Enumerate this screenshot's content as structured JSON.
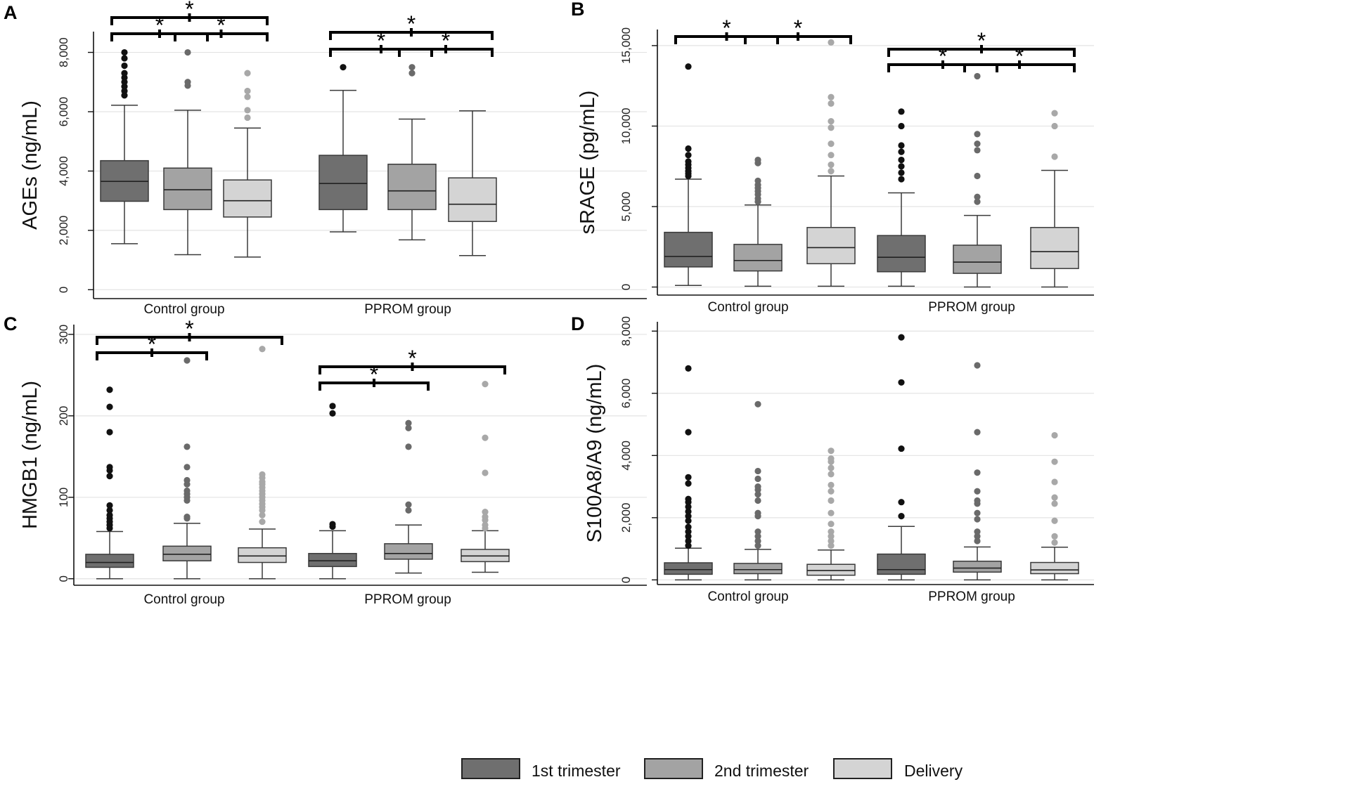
{
  "colors": {
    "dark": "#6f6f6f",
    "mid": "#a3a3a3",
    "light": "#d4d4d4",
    "outlier_dark": "#111111",
    "outlier_mid": "#6a6a6a",
    "outlier_light": "#a8a8a8"
  },
  "legend": [
    {
      "label": "1st trimester",
      "color": "#6f6f6f"
    },
    {
      "label": "2nd trimester",
      "color": "#a3a3a3"
    },
    {
      "label": "Delivery",
      "color": "#d4d4d4"
    }
  ],
  "chart_data": [
    {
      "type": "box",
      "panel": "A",
      "ylabel": "AGEs (ng/mL)",
      "ylim": [
        -300,
        8700
      ],
      "yticks": [
        0,
        2000,
        4000,
        6000,
        8000
      ],
      "ytick_labels": [
        "0",
        "2,000",
        "4,000",
        "6,000",
        "8,000"
      ],
      "groups": [
        "Control group",
        "PPROM group"
      ],
      "series": [
        "1st trimester",
        "2nd trimester",
        "Delivery"
      ],
      "boxes": [
        {
          "group": "Control group",
          "series": "1st trimester",
          "min": 1550,
          "q1": 2980,
          "median": 3650,
          "q3": 4350,
          "max": 6220,
          "outliers": [
            6550,
            6700,
            6850,
            7000,
            7150,
            7300,
            7550,
            7800,
            8000
          ]
        },
        {
          "group": "Control group",
          "series": "2nd trimester",
          "min": 1180,
          "q1": 2700,
          "median": 3370,
          "q3": 4100,
          "max": 6050,
          "outliers": [
            6880,
            7000,
            8000
          ]
        },
        {
          "group": "Control group",
          "series": "Delivery",
          "min": 1100,
          "q1": 2450,
          "median": 3000,
          "q3": 3700,
          "max": 5450,
          "outliers": [
            5800,
            6050,
            6500,
            6700,
            7300
          ]
        },
        {
          "group": "PPROM group",
          "series": "1st trimester",
          "min": 1950,
          "q1": 2700,
          "median": 3580,
          "q3": 4530,
          "max": 6720,
          "outliers": [
            7500
          ]
        },
        {
          "group": "PPROM group",
          "series": "2nd trimester",
          "min": 1680,
          "q1": 2700,
          "median": 3330,
          "q3": 4230,
          "max": 5750,
          "outliers": [
            7300,
            7500
          ]
        },
        {
          "group": "PPROM group",
          "series": "Delivery",
          "min": 1150,
          "q1": 2300,
          "median": 2880,
          "q3": 3770,
          "max": 6030,
          "outliers": []
        }
      ],
      "significance": [
        {
          "from": 0,
          "to": 1,
          "level": 0,
          "label": "*"
        },
        {
          "from": 1,
          "to": 2,
          "level": 0,
          "label": "*"
        },
        {
          "from": 0,
          "to": 2,
          "level": 1,
          "label": "*"
        },
        {
          "from": 3,
          "to": 4,
          "level": 0,
          "label": "*"
        },
        {
          "from": 4,
          "to": 5,
          "level": 0,
          "label": "*"
        },
        {
          "from": 3,
          "to": 5,
          "level": 1,
          "label": "*"
        }
      ]
    },
    {
      "type": "box",
      "panel": "B",
      "ylabel": "sRAGE (pg/mL)",
      "ylim": [
        -500,
        16000
      ],
      "yticks": [
        0,
        5000,
        10000,
        15000
      ],
      "ytick_labels": [
        "0",
        "5,000",
        "10,000",
        "15,000"
      ],
      "groups": [
        "Control group",
        "PPROM group"
      ],
      "series": [
        "1st trimester",
        "2nd trimester",
        "Delivery"
      ],
      "boxes": [
        {
          "group": "Control group",
          "series": "1st trimester",
          "min": 100,
          "q1": 1250,
          "median": 1900,
          "q3": 3400,
          "max": 6700,
          "outliers": [
            6900,
            7050,
            7200,
            7400,
            7600,
            7800,
            8200,
            8600,
            13700
          ]
        },
        {
          "group": "Control group",
          "series": "2nd trimester",
          "min": 50,
          "q1": 1000,
          "median": 1650,
          "q3": 2650,
          "max": 5100,
          "outliers": [
            5300,
            5500,
            5750,
            5950,
            6150,
            6350,
            6600,
            7700,
            7900
          ]
        },
        {
          "group": "Control group",
          "series": "Delivery",
          "min": 50,
          "q1": 1450,
          "median": 2450,
          "q3": 3700,
          "max": 6900,
          "outliers": [
            7200,
            7600,
            8200,
            8900,
            9900,
            10300,
            11400,
            11800,
            15200
          ]
        },
        {
          "group": "PPROM group",
          "series": "1st trimester",
          "min": 50,
          "q1": 950,
          "median": 1850,
          "q3": 3200,
          "max": 5850,
          "outliers": [
            6700,
            7100,
            7500,
            7900,
            8400,
            8800,
            10000,
            10900
          ]
        },
        {
          "group": "PPROM group",
          "series": "2nd trimester",
          "min": 0,
          "q1": 850,
          "median": 1550,
          "q3": 2600,
          "max": 4450,
          "outliers": [
            5300,
            5600,
            6900,
            8500,
            8900,
            9500,
            13100
          ]
        },
        {
          "group": "PPROM group",
          "series": "Delivery",
          "min": 0,
          "q1": 1150,
          "median": 2200,
          "q3": 3700,
          "max": 7250,
          "outliers": [
            8100,
            10000,
            10800
          ]
        }
      ],
      "significance": [
        {
          "from": 0,
          "to": 1,
          "level": 0,
          "label": "*"
        },
        {
          "from": 1,
          "to": 2,
          "level": 0,
          "label": "*"
        },
        {
          "from": 3,
          "to": 4,
          "level": 0,
          "label": "*"
        },
        {
          "from": 4,
          "to": 5,
          "level": 0,
          "label": "*"
        },
        {
          "from": 3,
          "to": 5,
          "level": 1,
          "label": "*"
        }
      ]
    },
    {
      "type": "box",
      "panel": "C",
      "ylabel": "HMGB1 (ng/mL)",
      "ylim": [
        -8,
        312
      ],
      "yticks": [
        0,
        100,
        200,
        300
      ],
      "ytick_labels": [
        "0",
        "100",
        "200",
        "300"
      ],
      "groups": [
        "Control group",
        "PPROM group"
      ],
      "series": [
        "1st trimester",
        "2nd trimester",
        "Delivery"
      ],
      "boxes": [
        {
          "group": "Control group",
          "series": "1st trimester",
          "min": 0,
          "q1": 14,
          "median": 20,
          "q3": 30,
          "max": 58,
          "outliers": [
            62,
            66,
            70,
            74,
            78,
            84,
            90,
            126,
            133,
            137,
            180,
            211,
            232
          ]
        },
        {
          "group": "Control group",
          "series": "2nd trimester",
          "min": 0,
          "q1": 22,
          "median": 30,
          "q3": 40,
          "max": 68,
          "outliers": [
            74,
            76,
            96,
            100,
            104,
            108,
            116,
            121,
            137,
            162,
            268
          ]
        },
        {
          "group": "Control group",
          "series": "Delivery",
          "min": 0,
          "q1": 20,
          "median": 28,
          "q3": 38,
          "max": 61,
          "outliers": [
            70,
            78,
            84,
            88,
            92,
            96,
            100,
            104,
            108,
            112,
            116,
            119,
            124,
            128,
            282
          ]
        },
        {
          "group": "PPROM group",
          "series": "1st trimester",
          "min": 0,
          "q1": 15,
          "median": 22,
          "q3": 31,
          "max": 59,
          "outliers": [
            64,
            67,
            203,
            212
          ]
        },
        {
          "group": "PPROM group",
          "series": "2nd trimester",
          "min": 7,
          "q1": 24,
          "median": 31,
          "q3": 43,
          "max": 66,
          "outliers": [
            84,
            91,
            162,
            185,
            191
          ]
        },
        {
          "group": "PPROM group",
          "series": "Delivery",
          "min": 8,
          "q1": 21,
          "median": 28,
          "q3": 36,
          "max": 59,
          "outliers": [
            62,
            66,
            72,
            76,
            82,
            130,
            173,
            239
          ]
        }
      ],
      "significance": [
        {
          "from": 0,
          "to": 1,
          "level": 0,
          "label": "*"
        },
        {
          "from": 0,
          "to": 2,
          "level": 1,
          "label": "*"
        },
        {
          "from": 3,
          "to": 4,
          "level": 0,
          "label": "*"
        },
        {
          "from": 3,
          "to": 5,
          "level": 1,
          "label": "*"
        }
      ]
    },
    {
      "type": "box",
      "panel": "D",
      "ylabel": "S100A8/A9 (ng/mL)",
      "ylim": [
        -150,
        8300
      ],
      "yticks": [
        0,
        2000,
        4000,
        6000,
        8000
      ],
      "ytick_labels": [
        "0",
        "2,000",
        "4,000",
        "6,000",
        "8,000"
      ],
      "groups": [
        "Control group",
        "PPROM group"
      ],
      "series": [
        "1st trimester",
        "2nd trimester",
        "Delivery"
      ],
      "boxes": [
        {
          "group": "Control group",
          "series": "1st trimester",
          "min": 0,
          "q1": 180,
          "median": 330,
          "q3": 550,
          "max": 1020,
          "outliers": [
            1100,
            1250,
            1400,
            1550,
            1700,
            1900,
            2050,
            2200,
            2350,
            2500,
            2600,
            3100,
            3300,
            4750,
            6800
          ]
        },
        {
          "group": "Control group",
          "series": "2nd trimester",
          "min": 0,
          "q1": 200,
          "median": 330,
          "q3": 530,
          "max": 980,
          "outliers": [
            1100,
            1250,
            1400,
            1550,
            2050,
            2150,
            2550,
            2750,
            2900,
            3000,
            3250,
            3500,
            5650
          ]
        },
        {
          "group": "Control group",
          "series": "Delivery",
          "min": 0,
          "q1": 150,
          "median": 300,
          "q3": 500,
          "max": 960,
          "outliers": [
            1100,
            1250,
            1400,
            1550,
            1800,
            2150,
            2550,
            2850,
            3050,
            3400,
            3600,
            3800,
            3900,
            4150
          ]
        },
        {
          "group": "PPROM group",
          "series": "1st trimester",
          "min": 0,
          "q1": 180,
          "median": 330,
          "q3": 830,
          "max": 1720,
          "outliers": [
            2050,
            2500,
            4220,
            6350,
            7800
          ]
        },
        {
          "group": "PPROM group",
          "series": "2nd trimester",
          "min": 0,
          "q1": 250,
          "median": 380,
          "q3": 600,
          "max": 1060,
          "outliers": [
            1250,
            1400,
            1550,
            1950,
            2150,
            2450,
            2550,
            2850,
            3450,
            4750,
            6900
          ]
        },
        {
          "group": "PPROM group",
          "series": "Delivery",
          "min": 0,
          "q1": 200,
          "median": 320,
          "q3": 560,
          "max": 1050,
          "outliers": [
            1200,
            1400,
            1900,
            2450,
            2650,
            3150,
            3800,
            4650
          ]
        }
      ],
      "significance": []
    }
  ]
}
